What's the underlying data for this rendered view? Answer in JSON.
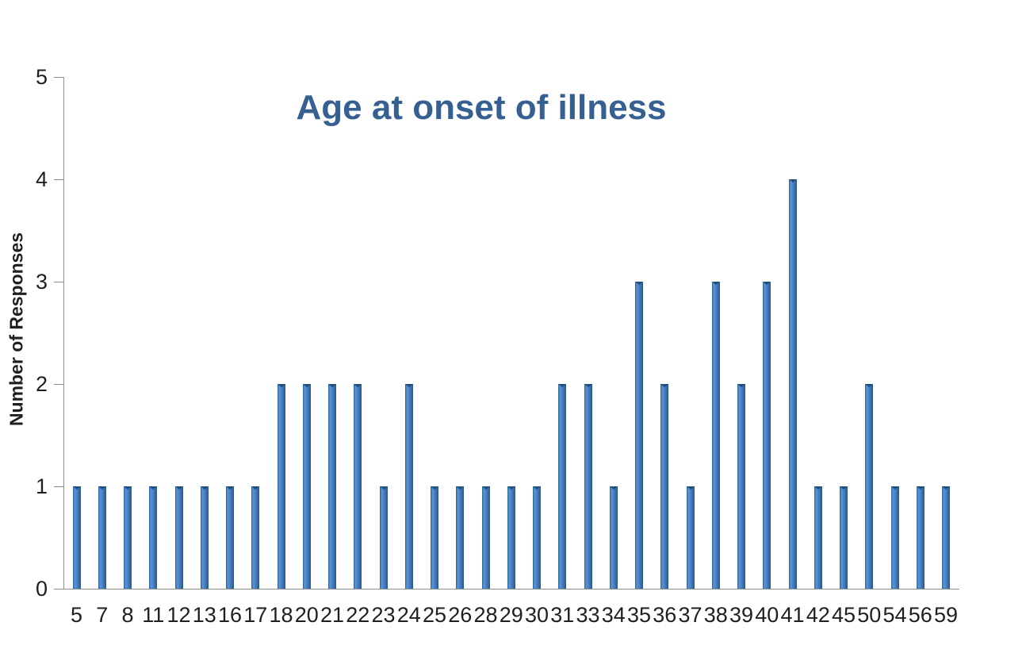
{
  "chart_data": {
    "type": "bar",
    "title": "Age at onset of illness",
    "xlabel": "",
    "ylabel": "Number of Responses",
    "categories": [
      "5",
      "7",
      "8",
      "11",
      "12",
      "13",
      "16",
      "17",
      "18",
      "20",
      "21",
      "22",
      "23",
      "24",
      "25",
      "26",
      "28",
      "29",
      "30",
      "31",
      "33",
      "34",
      "35",
      "36",
      "37",
      "38",
      "39",
      "40",
      "41",
      "42",
      "45",
      "50",
      "54",
      "56",
      "59"
    ],
    "values": [
      1,
      1,
      1,
      1,
      1,
      1,
      1,
      1,
      2,
      2,
      2,
      2,
      1,
      2,
      1,
      1,
      1,
      1,
      1,
      2,
      2,
      1,
      3,
      2,
      1,
      3,
      2,
      3,
      4,
      1,
      1,
      2,
      1,
      1,
      1
    ],
    "ylim": [
      0,
      5
    ],
    "yticks": [
      0,
      1,
      2,
      3,
      4,
      5
    ],
    "grid": false,
    "legend_position": "none",
    "colors": {
      "title": "#376092",
      "label": "#1f1f1f",
      "axis": "#8f8f8f",
      "bar_edge": "#2e5f99",
      "bar_highlight": "#5b94d4",
      "bar_mid": "#4a84c4",
      "bar_dark": "#2a568d",
      "bar_notch": "#1f4d80"
    }
  }
}
